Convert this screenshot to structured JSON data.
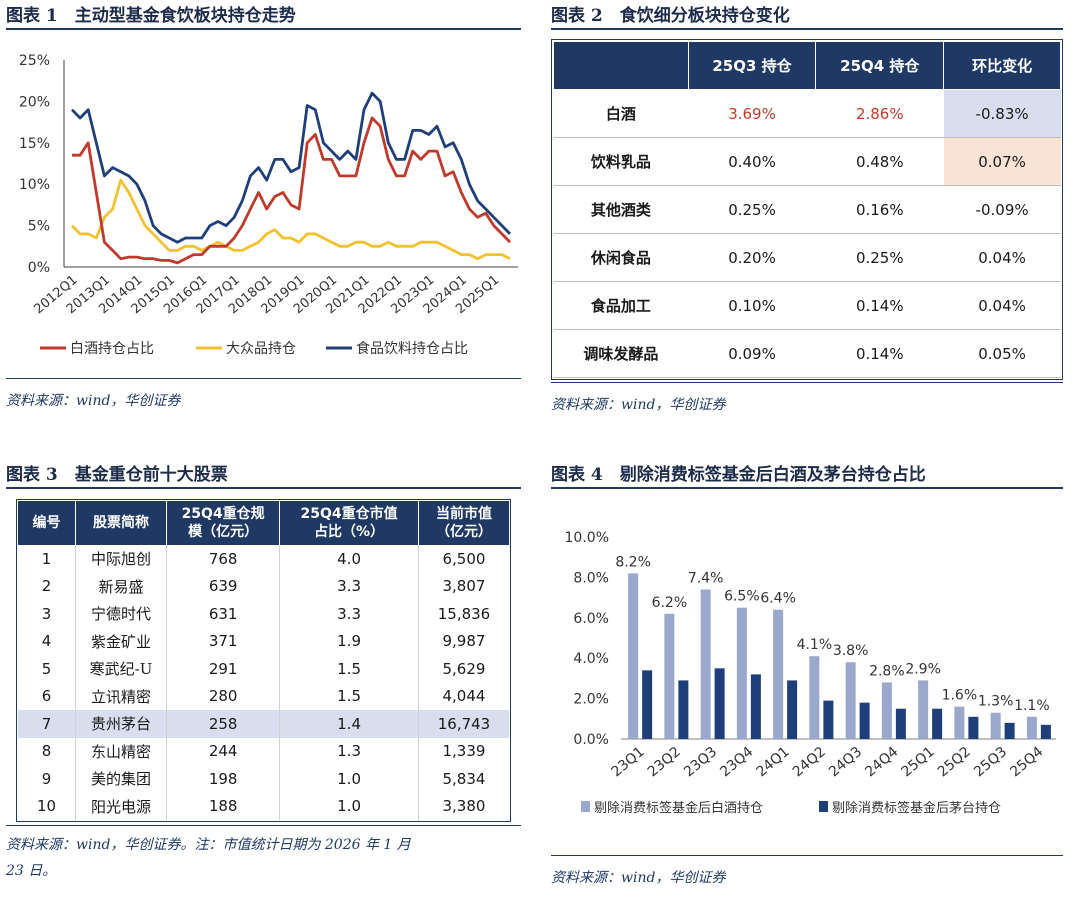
{
  "fig1": {
    "title": "图表 1　主动型基金食饮板块持仓走势",
    "source": "资料来源：wind，华创证券",
    "chart_data": {
      "type": "line",
      "title": "主动型基金食饮板块持仓走势",
      "x_labels": [
        "2012Q1",
        "2013Q1",
        "2014Q1",
        "2015Q1",
        "2016Q1",
        "2017Q1",
        "2018Q1",
        "2019Q1",
        "2020Q1",
        "2021Q1",
        "2022Q1",
        "2023Q1",
        "2024Q1",
        "2025Q1"
      ],
      "y_ticks": [
        "0%",
        "5%",
        "10%",
        "15%",
        "20%",
        "25%"
      ],
      "ylim": [
        0,
        25
      ],
      "series": [
        {
          "name": "白酒持仓占比",
          "color": "#c0392b",
          "values": [
            13.5,
            13.5,
            15,
            9,
            3,
            2,
            1,
            1.2,
            1.2,
            1,
            1,
            0.8,
            0.8,
            0.5,
            1,
            1.5,
            1.5,
            2.5,
            2.5,
            2.5,
            3.5,
            5,
            7,
            9,
            7,
            8.5,
            9,
            7.5,
            7,
            15,
            16,
            13,
            13,
            11,
            11,
            11,
            15,
            18,
            17,
            13,
            11,
            11,
            14,
            13,
            14,
            14,
            11,
            11.5,
            9,
            7,
            6,
            6.5,
            5,
            4,
            3
          ]
        },
        {
          "name": "大众品持仓",
          "color": "#f2c12e",
          "values": [
            5,
            4,
            4,
            3.5,
            6,
            7,
            10.5,
            9,
            7,
            5,
            4,
            3,
            2,
            2,
            2.5,
            2.5,
            2,
            2.5,
            3,
            2.5,
            2,
            2,
            2.5,
            3,
            4,
            4.5,
            3.5,
            3.5,
            3,
            4,
            4,
            3.5,
            3,
            2.5,
            2.5,
            3,
            3,
            2.5,
            2.5,
            3,
            2.5,
            2.5,
            2.5,
            3,
            3,
            3,
            2.5,
            2,
            1.5,
            1.5,
            1,
            1.5,
            1.5,
            1.5,
            1
          ]
        },
        {
          "name": "食品饮料持仓占比",
          "color": "#1f3f7a",
          "values": [
            19,
            18,
            19,
            15,
            11,
            12,
            11.5,
            11,
            10,
            8,
            5,
            4,
            3.5,
            3,
            3.5,
            3.5,
            3.5,
            5,
            5.5,
            5,
            6,
            8,
            11,
            12,
            10.5,
            13,
            13,
            11.5,
            12,
            19.5,
            19,
            15,
            14,
            13,
            14,
            13,
            19,
            21,
            20,
            15,
            13,
            13,
            16.5,
            16.5,
            16,
            17,
            14.5,
            15,
            13,
            10,
            8,
            7,
            6,
            5,
            4
          ]
        }
      ]
    }
  },
  "fig2": {
    "title": "图表 2　食饮细分板块持仓变化",
    "source": "资料来源：wind，华创证券",
    "headers": [
      "",
      "25Q3 持仓",
      "25Q4 持仓",
      "环比变化"
    ],
    "rows": [
      {
        "name": "白酒",
        "q3": "3.69%",
        "q4": "2.86%",
        "chg": "-0.83%"
      },
      {
        "name": "饮料乳品",
        "q3": "0.40%",
        "q4": "0.48%",
        "chg": "0.07%"
      },
      {
        "name": "其他酒类",
        "q3": "0.25%",
        "q4": "0.16%",
        "chg": "-0.09%"
      },
      {
        "name": "休闲食品",
        "q3": "0.20%",
        "q4": "0.25%",
        "chg": "0.04%"
      },
      {
        "name": "食品加工",
        "q3": "0.10%",
        "q4": "0.14%",
        "chg": "0.04%"
      },
      {
        "name": "调味发酵品",
        "q3": "0.09%",
        "q4": "0.14%",
        "chg": "0.05%"
      }
    ],
    "colors": {
      "red_text": "#c0392b",
      "neg_bg": "#d9deee",
      "pos_bg": "#f8e3d4",
      "header_bg": "#1f3864"
    }
  },
  "fig3": {
    "title": "图表 3　基金重仓前十大股票",
    "source_line1": "资料来源：wind，华创证券。注：市值统计日期为 2026 年 1 月",
    "source_line2": "23 日。",
    "headers": {
      "no": "编号",
      "name": "股票简称",
      "scale_1": "25Q4重仓规",
      "scale_2": "模（亿元）",
      "ratio_1": "25Q4重仓市值",
      "ratio_2": "占比（%）",
      "mv_1": "当前市值",
      "mv_2": "（亿元）"
    },
    "rows": [
      {
        "no": "1",
        "name": "中际旭创",
        "scale": "768",
        "ratio": "4.0",
        "mv": "6,500"
      },
      {
        "no": "2",
        "name": "新易盛",
        "scale": "639",
        "ratio": "3.3",
        "mv": "3,807"
      },
      {
        "no": "3",
        "name": "宁德时代",
        "scale": "631",
        "ratio": "3.3",
        "mv": "15,836"
      },
      {
        "no": "4",
        "name": "紫金矿业",
        "scale": "371",
        "ratio": "1.9",
        "mv": "9,987"
      },
      {
        "no": "5",
        "name": "寒武纪-U",
        "scale": "291",
        "ratio": "1.5",
        "mv": "5,629"
      },
      {
        "no": "6",
        "name": "立讯精密",
        "scale": "280",
        "ratio": "1.5",
        "mv": "4,044"
      },
      {
        "no": "7",
        "name": "贵州茅台",
        "scale": "258",
        "ratio": "1.4",
        "mv": "16,743"
      },
      {
        "no": "8",
        "name": "东山精密",
        "scale": "244",
        "ratio": "1.3",
        "mv": "1,339"
      },
      {
        "no": "9",
        "name": "美的集团",
        "scale": "198",
        "ratio": "1.0",
        "mv": "5,834"
      },
      {
        "no": "10",
        "name": "阳光电源",
        "scale": "188",
        "ratio": "1.0",
        "mv": "3,380"
      }
    ]
  },
  "fig4": {
    "title": "图表 4　剔除消费标签基金后白酒及茅台持仓占比",
    "source": "资料来源：wind，华创证券",
    "chart_data": {
      "type": "bar",
      "title": "剔除消费标签基金后白酒及茅台持仓占比",
      "categories": [
        "23Q1",
        "23Q2",
        "23Q3",
        "23Q4",
        "24Q1",
        "24Q2",
        "24Q3",
        "24Q4",
        "25Q1",
        "25Q2",
        "25Q3",
        "25Q4"
      ],
      "y_ticks": [
        "0.0%",
        "2.0%",
        "4.0%",
        "6.0%",
        "8.0%",
        "10.0%"
      ],
      "ylim": [
        0,
        10
      ],
      "series": [
        {
          "name": "剔除消费标签基金后白酒持仓",
          "color": "#9aa8cc",
          "values": [
            8.2,
            6.2,
            7.4,
            6.5,
            6.4,
            4.1,
            3.8,
            2.8,
            2.9,
            1.6,
            1.3,
            1.1
          ],
          "labels": [
            "8.2%",
            "6.2%",
            "7.4%",
            "6.5%",
            "6.4%",
            "4.1%",
            "3.8%",
            "2.8%",
            "2.9%",
            "1.6%",
            "1.3%",
            "1.1%"
          ]
        },
        {
          "name": "剔除消费标签基金后茅台持仓",
          "color": "#1f3f7a",
          "values": [
            3.4,
            2.9,
            3.5,
            3.2,
            2.9,
            1.9,
            1.8,
            1.5,
            1.5,
            1.1,
            0.8,
            0.7
          ]
        }
      ]
    }
  }
}
